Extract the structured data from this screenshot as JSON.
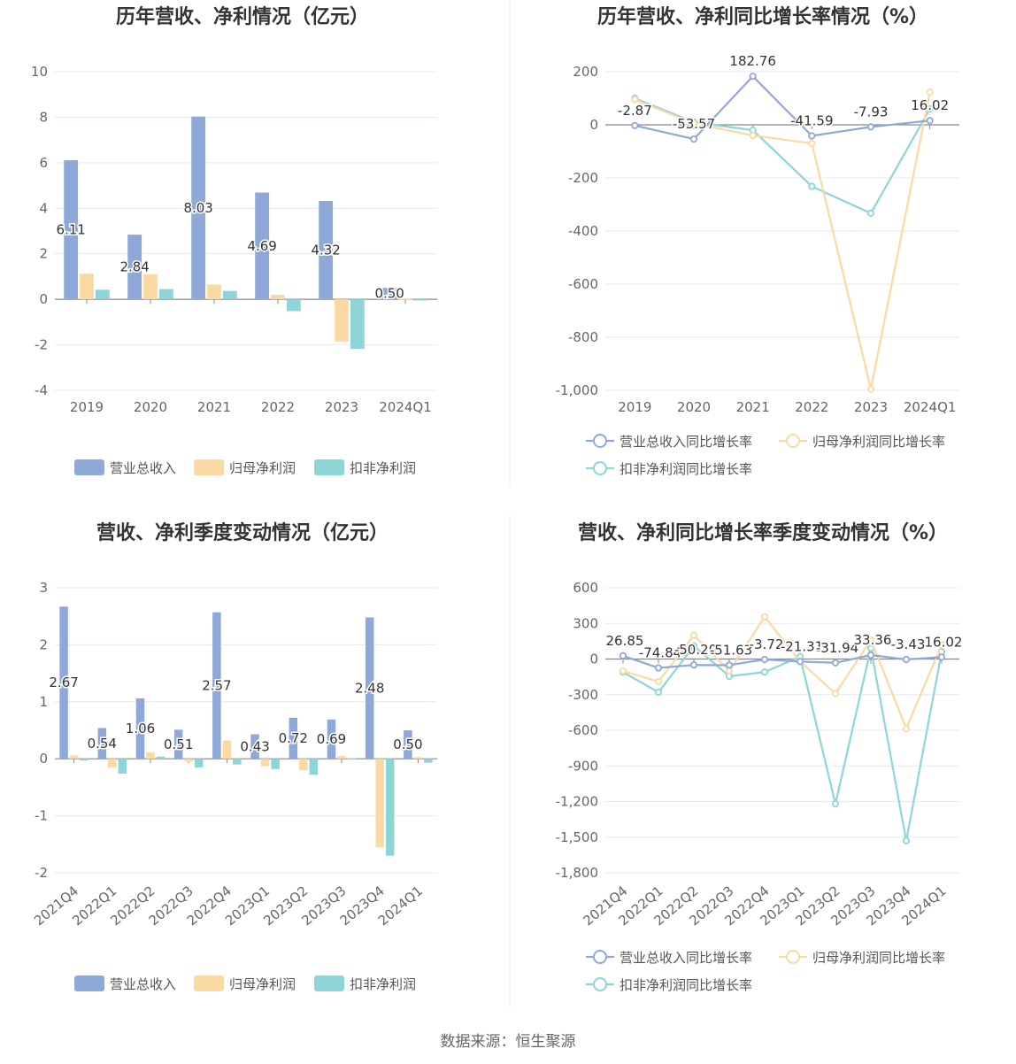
{
  "source_label": "数据来源：恒生聚源",
  "colors": {
    "revenue": "#8ea9d8",
    "net": "#fbd9a3",
    "deduct": "#8dd5d7",
    "axis": "#888888",
    "grid": "#e6e9f0"
  },
  "legend_labels": {
    "bar": [
      "营业总收入",
      "归母净利润",
      "扣非净利润"
    ],
    "line": [
      "营业总收入同比增长率",
      "归母净利润同比增长率",
      "扣非净利润同比增长率"
    ]
  },
  "chart_data": [
    {
      "id": "annual-bar",
      "type": "bar",
      "title": "历年营收、净利情况（亿元）",
      "categories": [
        "2019",
        "2020",
        "2021",
        "2022",
        "2023",
        "2024Q1"
      ],
      "ylim": [
        -4,
        10
      ],
      "yticks": [
        10,
        8,
        6,
        4,
        2,
        0,
        -2,
        -4
      ],
      "series": [
        {
          "name": "营业总收入",
          "values": [
            6.11,
            2.84,
            8.03,
            4.69,
            4.32,
            0.5
          ],
          "labels": [
            "6.11",
            "2.84",
            "8.03",
            "4.69",
            "4.32",
            "0.50"
          ]
        },
        {
          "name": "归母净利润",
          "values": [
            1.13,
            1.1,
            0.65,
            0.2,
            -1.86,
            0.02
          ]
        },
        {
          "name": "扣非净利润",
          "values": [
            0.42,
            0.45,
            0.37,
            -0.52,
            -2.18,
            -0.05
          ]
        }
      ],
      "legend": "bottom"
    },
    {
      "id": "annual-line",
      "type": "line",
      "title": "历年营收、净利同比增长率情况（%）",
      "categories": [
        "2019",
        "2020",
        "2021",
        "2022",
        "2023",
        "2024Q1"
      ],
      "ylim": [
        -1000,
        200
      ],
      "yticks": [
        "200",
        "0",
        "-200",
        "-400",
        "-600",
        "-800",
        "-1,000"
      ],
      "ytick_values": [
        200,
        0,
        -200,
        -400,
        -600,
        -800,
        -1000
      ],
      "series": [
        {
          "name": "营业总收入同比增长率",
          "values": [
            -2.87,
            -53.57,
            182.76,
            -41.59,
            -7.93,
            16.02
          ],
          "labels": [
            "-2.87",
            "-53.57",
            "182.76",
            "-41.59",
            "-7.93",
            "16.02"
          ]
        },
        {
          "name": "归母净利润同比增长率",
          "values": [
            95,
            5,
            -40,
            -70,
            -995,
            123
          ]
        },
        {
          "name": "扣非净利润同比增长率",
          "values": [
            100,
            10,
            -20,
            -232,
            -333,
            60
          ]
        }
      ],
      "legend": "bottom"
    },
    {
      "id": "quarter-bar",
      "type": "bar",
      "title": "营收、净利季度变动情况（亿元）",
      "categories": [
        "2021Q4",
        "2022Q1",
        "2022Q2",
        "2022Q3",
        "2022Q4",
        "2023Q1",
        "2023Q2",
        "2023Q3",
        "2023Q4",
        "2024Q1"
      ],
      "ylim": [
        -2,
        3
      ],
      "yticks": [
        3,
        2,
        1,
        0,
        -1,
        -2
      ],
      "series": [
        {
          "name": "营业总收入",
          "values": [
            2.67,
            0.54,
            1.06,
            0.51,
            2.57,
            0.43,
            0.72,
            0.69,
            2.48,
            0.5
          ],
          "labels": [
            "2.67",
            "0.54",
            "1.06",
            "0.51",
            "2.57",
            "0.43",
            "0.72",
            "0.69",
            "2.48",
            "0.50"
          ]
        },
        {
          "name": "归母净利润",
          "values": [
            0.06,
            -0.15,
            0.11,
            -0.05,
            0.32,
            -0.13,
            -0.2,
            0.05,
            -1.55,
            0.03
          ]
        },
        {
          "name": "扣非净利润",
          "values": [
            -0.03,
            -0.26,
            0.04,
            -0.15,
            -0.1,
            -0.18,
            -0.28,
            0.01,
            -1.7,
            -0.07
          ]
        }
      ],
      "legend": "bottom"
    },
    {
      "id": "quarter-line",
      "type": "line",
      "title": "营收、净利同比增长率季度变动情况（%）",
      "categories": [
        "2021Q4",
        "2022Q1",
        "2022Q2",
        "2022Q3",
        "2022Q4",
        "2023Q1",
        "2023Q2",
        "2023Q3",
        "2023Q4",
        "2024Q1"
      ],
      "ylim": [
        -1800,
        600
      ],
      "yticks": [
        "600",
        "300",
        "0",
        "-300",
        "-600",
        "-900",
        "-1,200",
        "-1,500",
        "-1,800"
      ],
      "ytick_values": [
        600,
        300,
        0,
        -300,
        -600,
        -900,
        -1200,
        -1500,
        -1800
      ],
      "series": [
        {
          "name": "营业总收入同比增长率",
          "values": [
            26.85,
            -74.84,
            -50.2,
            -51.63,
            -3.72,
            -21.31,
            -31.94,
            33.36,
            -3.43,
            16.02
          ],
          "labels": [
            "26.85",
            "-74.84",
            "-50.20",
            "-51.63",
            "-3.72",
            "-21.31",
            "-31.94",
            "33.36",
            "-3.43",
            "16.02"
          ]
        },
        {
          "name": "归母净利润同比增长率",
          "values": [
            -100,
            -190,
            200,
            -100,
            355,
            -20,
            -290,
            160,
            -585,
            120
          ]
        },
        {
          "name": "扣非净利润同比增长率",
          "values": [
            -110,
            -280,
            110,
            -145,
            -110,
            20,
            -1220,
            90,
            -1530,
            60
          ]
        }
      ],
      "legend": "bottom"
    }
  ]
}
